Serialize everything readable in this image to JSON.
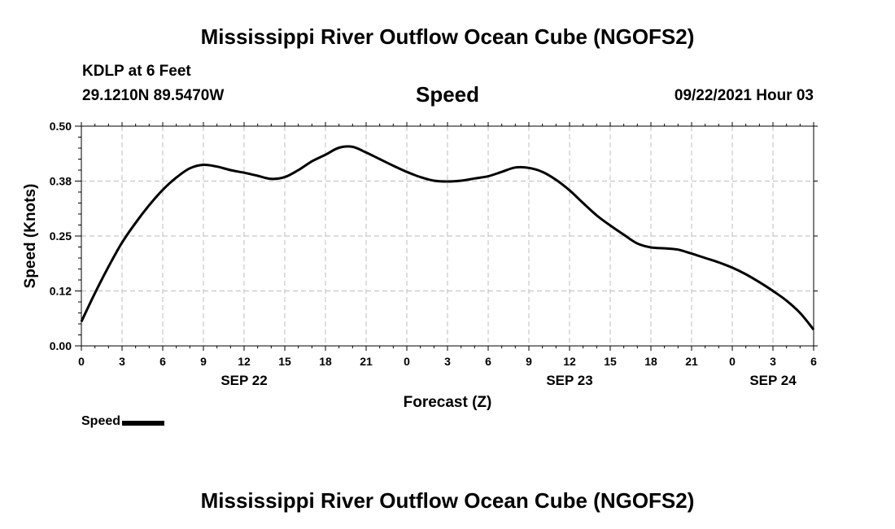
{
  "header": {
    "title_top": "Mississippi River Outflow Ocean Cube (NGOFS2)",
    "station": "KDLP at 6 Feet",
    "coords": "29.1210N  89.5470W",
    "variable": "Speed",
    "timestamp": "09/22/2021 Hour 03",
    "title_bottom": "Mississippi River Outflow Ocean Cube (NGOFS2)"
  },
  "legend": {
    "label": "Speed",
    "color": "#000000"
  },
  "chart_data": {
    "type": "line",
    "title": "Speed",
    "xlabel": "Forecast (Z)",
    "ylabel": "Speed (Knots)",
    "xlim": [
      0,
      54
    ],
    "ylim": [
      0,
      0.5
    ],
    "x_ticks": [
      0,
      3,
      6,
      9,
      12,
      15,
      18,
      21,
      24,
      27,
      30,
      33,
      36,
      39,
      42,
      45,
      48,
      51,
      54
    ],
    "x_tick_labels": [
      "0",
      "3",
      "6",
      "9",
      "12",
      "15",
      "18",
      "21",
      "0",
      "3",
      "6",
      "9",
      "12",
      "15",
      "18",
      "21",
      "0",
      "3",
      "6"
    ],
    "y_ticks": [
      0,
      0.125,
      0.25,
      0.375,
      0.5
    ],
    "y_tick_labels": [
      "0.00",
      "0.12",
      "0.25",
      "0.38",
      "0.50"
    ],
    "date_labels": [
      {
        "x": 12,
        "label": "SEP 22"
      },
      {
        "x": 36,
        "label": "SEP 23"
      },
      {
        "x": 51,
        "label": "SEP 24"
      }
    ],
    "grid": true,
    "legend_position": "bottom-left",
    "series": [
      {
        "name": "Speed",
        "color": "#000000",
        "x": [
          0,
          1,
          2,
          3,
          4,
          5,
          6,
          7,
          8,
          9,
          10,
          11,
          12,
          13,
          14,
          15,
          16,
          17,
          18,
          19,
          20,
          21,
          22,
          23,
          24,
          25,
          26,
          27,
          28,
          29,
          30,
          31,
          32,
          33,
          34,
          35,
          36,
          37,
          38,
          39,
          40,
          41,
          42,
          43,
          44,
          45,
          46,
          47,
          48,
          49,
          50,
          51,
          52,
          53,
          54
        ],
        "y": [
          0.055,
          0.12,
          0.18,
          0.235,
          0.28,
          0.32,
          0.355,
          0.383,
          0.404,
          0.412,
          0.408,
          0.4,
          0.394,
          0.387,
          0.38,
          0.384,
          0.4,
          0.42,
          0.435,
          0.451,
          0.453,
          0.44,
          0.425,
          0.41,
          0.396,
          0.384,
          0.376,
          0.374,
          0.376,
          0.381,
          0.386,
          0.396,
          0.406,
          0.405,
          0.396,
          0.378,
          0.354,
          0.325,
          0.297,
          0.274,
          0.253,
          0.233,
          0.224,
          0.222,
          0.219,
          0.21,
          0.2,
          0.19,
          0.178,
          0.163,
          0.145,
          0.125,
          0.103,
          0.075,
          0.037
        ]
      }
    ]
  }
}
